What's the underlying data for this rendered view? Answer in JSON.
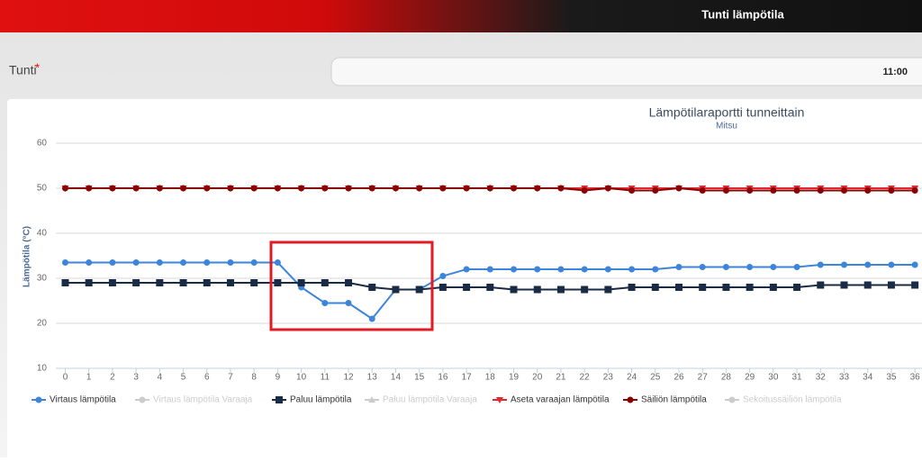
{
  "header": {
    "title": "Tunti lämpötila"
  },
  "form": {
    "label": "Tunti",
    "required_mark": "*",
    "value": "11:00"
  },
  "chart_data": {
    "type": "line",
    "title": "Lämpötilaraportti tunneittain",
    "subtitle": "Mitsu",
    "y_label": "Lämpötila (°C)",
    "x": [
      0,
      1,
      2,
      3,
      4,
      5,
      6,
      7,
      8,
      9,
      10,
      11,
      12,
      13,
      14,
      15,
      16,
      17,
      18,
      19,
      20,
      21,
      22,
      23,
      24,
      25,
      26,
      27,
      28,
      29,
      30,
      31,
      32,
      33,
      34,
      35,
      36
    ],
    "xlim": [
      -0.4,
      36.3
    ],
    "ylim": [
      10,
      60
    ],
    "yticks": [
      10,
      20,
      30,
      40,
      50,
      60
    ],
    "grid": true,
    "series": [
      {
        "name": "Virtaus lämpötila",
        "color": "#3d85d8",
        "marker": "circle",
        "visible": true,
        "values": [
          33.5,
          33.5,
          33.5,
          33.5,
          33.5,
          33.5,
          33.5,
          33.5,
          33.5,
          33.5,
          28,
          24.5,
          24.5,
          21,
          27.5,
          27.5,
          30.5,
          32,
          32,
          32,
          32,
          32,
          32,
          32,
          32,
          32,
          32.5,
          32.5,
          32.5,
          32.5,
          32.5,
          32.5,
          33,
          33,
          33,
          33,
          33
        ]
      },
      {
        "name": "Virtaus lämpötila Varaaja",
        "color": "#cccccc",
        "marker": "circle",
        "visible": false
      },
      {
        "name": "Paluu lämpötila",
        "color": "#1a2b45",
        "marker": "square",
        "visible": true,
        "values": [
          29,
          29,
          29,
          29,
          29,
          29,
          29,
          29,
          29,
          29,
          29,
          29,
          29,
          28,
          27.5,
          27.5,
          28,
          28,
          28,
          27.5,
          27.5,
          27.5,
          27.5,
          27.5,
          28,
          28,
          28,
          28,
          28,
          28,
          28,
          28,
          28.5,
          28.5,
          28.5,
          28.5,
          28.5
        ]
      },
      {
        "name": "Paluu lämpötila Varaaja",
        "color": "#cccccc",
        "marker": "triangle",
        "visible": false
      },
      {
        "name": "Aseta varaajan lämpötila",
        "color": "#e0282e",
        "marker": "triangle-down",
        "visible": true,
        "values": [
          50,
          50,
          50,
          50,
          50,
          50,
          50,
          50,
          50,
          50,
          50,
          50,
          50,
          50,
          50,
          50,
          50,
          50,
          50,
          50,
          50,
          50,
          50,
          50,
          50,
          50,
          50,
          50,
          50,
          50,
          50,
          50,
          50,
          50,
          50,
          50,
          50
        ]
      },
      {
        "name": "Säiliön lämpötila",
        "color": "#8b0000",
        "marker": "circle",
        "visible": true,
        "values": [
          50,
          50,
          50,
          50,
          50,
          50,
          50,
          50,
          50,
          50,
          50,
          50,
          50,
          50,
          50,
          50,
          50,
          50,
          50,
          50,
          50,
          50,
          49.5,
          50,
          49.5,
          49.5,
          50,
          49.5,
          49.5,
          49.5,
          49.5,
          49.5,
          49.5,
          49.5,
          49.5,
          49.5,
          49.5
        ]
      },
      {
        "name": "Sekoitussäiliön lämpötila",
        "color": "#cccccc",
        "marker": "circle",
        "visible": false
      }
    ]
  }
}
